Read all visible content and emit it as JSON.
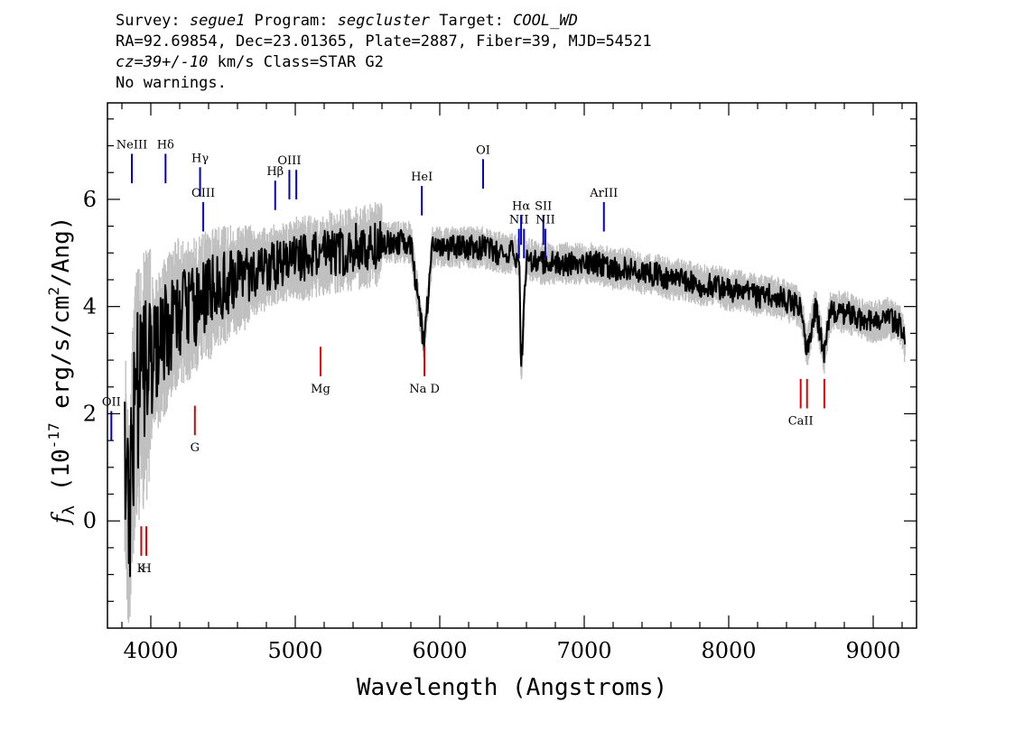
{
  "header": {
    "l1_a": "Survey: ",
    "survey": "segue1",
    "l1_b": " Program: ",
    "program": "segcluster",
    "l1_c": " Target: ",
    "target": "COOL_WD",
    "line2": "RA=92.69854, Dec=23.01365, Plate=2887, Fiber=39, MJD=54521",
    "cz": "cz=39+/-10",
    "line3_rest": " km/s Class=STAR G2",
    "line4": "No warnings."
  },
  "chart_data": {
    "type": "line",
    "title": "",
    "xlabel": "Wavelength (Angstroms)",
    "ylabel": "fλ (10^-17 erg/s/cm^2/Ang)",
    "xlim": [
      3700,
      9300
    ],
    "ylim": [
      -2.0,
      7.8
    ],
    "xticks": [
      "4000",
      "5000",
      "6000",
      "7000",
      "8000",
      "9000"
    ],
    "yticks": [
      "0",
      "2",
      "4",
      "6"
    ],
    "colors": {
      "flux": "#000000",
      "error_band": "#c0c0c0",
      "emission": "#0000cc",
      "absorption": "#dd0000"
    },
    "series": [
      {
        "role": "flux",
        "x": [
          3820,
          3850,
          3880,
          3900,
          3950,
          4000,
          4050,
          4100,
          4150,
          4200,
          4300,
          4400,
          4500,
          4600,
          4700,
          4800,
          4900,
          5000,
          5100,
          5200,
          5300,
          5400,
          5500,
          5600,
          5700,
          5800,
          5890,
          5950,
          6000,
          6100,
          6200,
          6300,
          6400,
          6500,
          6550,
          6563,
          6600,
          6700,
          6800,
          6900,
          7000,
          7100,
          7200,
          7300,
          7400,
          7500,
          7600,
          7700,
          7800,
          7900,
          8000,
          8100,
          8200,
          8300,
          8400,
          8500,
          8542,
          8600,
          8662,
          8700,
          8800,
          8900,
          9000,
          9100,
          9200,
          9220
        ],
        "y": [
          1.0,
          0.0,
          1.5,
          2.3,
          2.6,
          2.9,
          3.2,
          3.5,
          3.7,
          3.9,
          4.0,
          4.2,
          4.4,
          4.5,
          4.6,
          4.7,
          4.8,
          4.9,
          4.9,
          5.0,
          5.0,
          5.1,
          5.1,
          5.2,
          5.2,
          5.2,
          3.3,
          5.1,
          5.1,
          5.1,
          5.1,
          5.1,
          5.0,
          5.0,
          4.9,
          2.8,
          4.9,
          4.8,
          4.8,
          4.8,
          4.8,
          4.8,
          4.7,
          4.7,
          4.6,
          4.6,
          4.5,
          4.5,
          4.4,
          4.4,
          4.3,
          4.3,
          4.2,
          4.2,
          4.1,
          4.0,
          3.2,
          4.0,
          3.1,
          3.9,
          3.9,
          3.8,
          3.7,
          3.8,
          3.6,
          3.3
        ]
      }
    ],
    "emission_lines": [
      {
        "label": "OII",
        "x": 3727,
        "y_top": 2.05,
        "y_bot": 1.5
      },
      {
        "label": "NeIII",
        "x": 3869,
        "y_top": 6.85,
        "y_bot": 6.3
      },
      {
        "label": "Hδ",
        "x": 4102,
        "y_top": 6.85,
        "y_bot": 6.3
      },
      {
        "label": "Hγ",
        "x": 4341,
        "y_top": 6.6,
        "y_bot": 6.05
      },
      {
        "label": "OIII",
        "x": 4363,
        "y_top": 5.95,
        "y_bot": 5.4
      },
      {
        "label": "Hβ",
        "x": 4861,
        "y_top": 6.35,
        "y_bot": 5.8
      },
      {
        "label": "OIII",
        "x": 4959,
        "y_top": 6.55,
        "y_bot": 6.0
      },
      {
        "label": "",
        "x": 5007,
        "y_top": 6.55,
        "y_bot": 6.0
      },
      {
        "label": "HeI",
        "x": 5876,
        "y_top": 6.25,
        "y_bot": 5.7
      },
      {
        "label": "OI",
        "x": 6300,
        "y_top": 6.75,
        "y_bot": 6.2
      },
      {
        "label": "NII",
        "x": 6548,
        "y_top": 5.45,
        "y_bot": 4.9
      },
      {
        "label": "Hα",
        "x": 6563,
        "y_top": 5.7,
        "y_bot": 5.15
      },
      {
        "label": "",
        "x": 6583,
        "y_top": 5.45,
        "y_bot": 4.9
      },
      {
        "label": "SII",
        "x": 6717,
        "y_top": 5.7,
        "y_bot": 5.15
      },
      {
        "label": "NII",
        "x": 6731,
        "y_top": 5.45,
        "y_bot": 4.9
      },
      {
        "label": "ArIII",
        "x": 7136,
        "y_top": 5.95,
        "y_bot": 5.4
      }
    ],
    "absorption_lines": [
      {
        "label": "K",
        "x": 3934,
        "y_top": -0.1,
        "y_bot": -0.65
      },
      {
        "label": "H",
        "x": 3969,
        "y_top": -0.1,
        "y_bot": -0.65
      },
      {
        "label": "G",
        "x": 4305,
        "y_top": 2.15,
        "y_bot": 1.6
      },
      {
        "label": "Mg",
        "x": 5175,
        "y_top": 3.25,
        "y_bot": 2.7
      },
      {
        "label": "Na D",
        "x": 5894,
        "y_top": 3.25,
        "y_bot": 2.7
      },
      {
        "label": "CaII",
        "x": 8498,
        "y_top": 2.65,
        "y_bot": 2.1
      },
      {
        "label": "",
        "x": 8542,
        "y_top": 2.65,
        "y_bot": 2.1
      },
      {
        "label": "",
        "x": 8662,
        "y_top": 2.65,
        "y_bot": 2.1
      }
    ]
  }
}
